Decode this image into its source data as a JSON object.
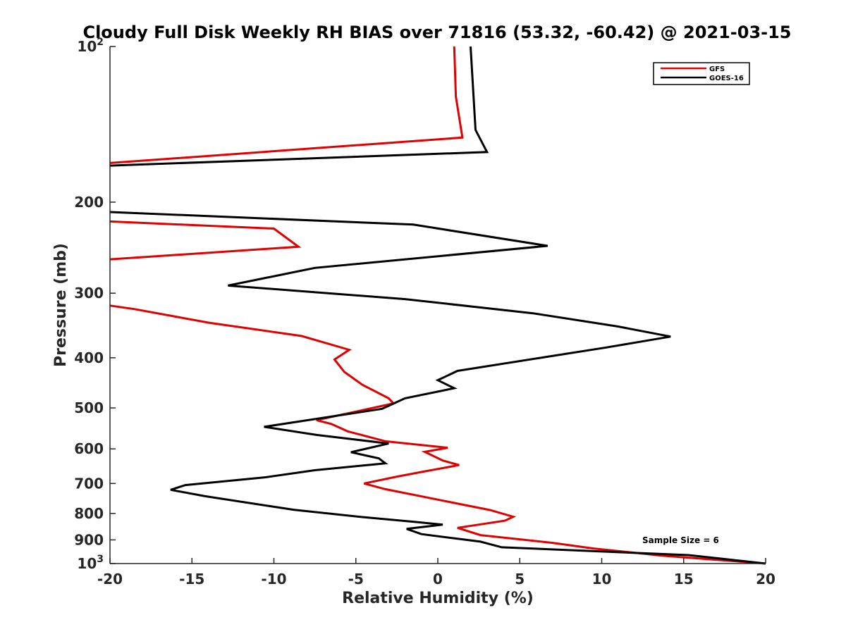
{
  "chart_data": {
    "type": "line",
    "title": "Cloudy Full Disk Weekly RH BIAS over 71816 (53.32, -60.42) @ 2021-03-15",
    "xlabel": "Relative Humidity (%)",
    "ylabel": "Pressure (mb)",
    "xlim": [
      -20,
      20
    ],
    "ylim": [
      100,
      1000
    ],
    "yscale": "log",
    "y_reversed": true,
    "x_ticks": [
      -20,
      -15,
      -10,
      -5,
      0,
      5,
      10,
      15,
      20
    ],
    "y_ticks": [
      {
        "value": 100,
        "base": "10",
        "exp": "2"
      },
      {
        "value": 200,
        "label": "200"
      },
      {
        "value": 300,
        "label": "300"
      },
      {
        "value": 400,
        "label": "400"
      },
      {
        "value": 500,
        "label": "500"
      },
      {
        "value": 600,
        "label": "600"
      },
      {
        "value": 700,
        "label": "700"
      },
      {
        "value": 800,
        "label": "800"
      },
      {
        "value": 900,
        "label": "900"
      },
      {
        "value": 1000,
        "base": "10",
        "exp": "3"
      }
    ],
    "legend_position": "top-right",
    "annotation": "Sample Size = 6",
    "series": [
      {
        "name": "GFS",
        "color": "#e00000",
        "points": [
          [
            1.0,
            100
          ],
          [
            1.1,
            125
          ],
          [
            1.5,
            150
          ],
          [
            -20,
            168
          ],
          [
            null,
            null
          ],
          [
            -20,
            218
          ],
          [
            -10.0,
            225
          ],
          [
            -8.5,
            244
          ],
          [
            -20,
            258
          ],
          [
            null,
            null
          ],
          [
            -20,
            317
          ],
          [
            -18.5,
            322
          ],
          [
            -14.0,
            342
          ],
          [
            -8.3,
            363
          ],
          [
            -5.4,
            386
          ],
          [
            -6.3,
            403
          ],
          [
            -5.7,
            426
          ],
          [
            -4.6,
            451
          ],
          [
            -3.0,
            479
          ],
          [
            -2.7,
            490
          ],
          [
            -4.7,
            506
          ],
          [
            -7.4,
            528
          ],
          [
            -6.5,
            537
          ],
          [
            -5.5,
            555
          ],
          [
            -3.2,
            580
          ],
          [
            0.6,
            597
          ],
          [
            -0.8,
            608
          ],
          [
            0.3,
            632
          ],
          [
            1.3,
            645
          ],
          [
            -1.0,
            665
          ],
          [
            -2.5,
            679
          ],
          [
            -4.5,
            700
          ],
          [
            -3.2,
            718
          ],
          [
            3.2,
            788
          ],
          [
            4.6,
            812
          ],
          [
            4.1,
            826
          ],
          [
            1.2,
            853
          ],
          [
            2.6,
            881
          ],
          [
            7.0,
            912
          ],
          [
            9.5,
            935
          ],
          [
            13.6,
            965
          ],
          [
            20.0,
            1000
          ]
        ]
      },
      {
        "name": "GOES-16",
        "color": "#000000",
        "points": [
          [
            2.0,
            100
          ],
          [
            2.3,
            145
          ],
          [
            3.0,
            160
          ],
          [
            -20,
            170
          ],
          [
            null,
            null
          ],
          [
            -20,
            209
          ],
          [
            -1.5,
            221
          ],
          [
            6.7,
            243
          ],
          [
            -7.5,
            268
          ],
          [
            -12.8,
            290
          ],
          [
            -2.0,
            308
          ],
          [
            5.8,
            328
          ],
          [
            11.0,
            348
          ],
          [
            14.2,
            364
          ],
          [
            10.3,
            382
          ],
          [
            1.2,
            424
          ],
          [
            0.0,
            442
          ],
          [
            1.0,
            458
          ],
          [
            -2.0,
            479
          ],
          [
            -3.4,
            502
          ],
          [
            -10.6,
            544
          ],
          [
            -7.4,
            564
          ],
          [
            -3.0,
            586
          ],
          [
            -5.3,
            609
          ],
          [
            -3.6,
            626
          ],
          [
            -3.2,
            640
          ],
          [
            -7.5,
            660
          ],
          [
            -10.5,
            681
          ],
          [
            -15.4,
            705
          ],
          [
            -16.3,
            720
          ],
          [
            -14.2,
            741
          ],
          [
            -8.8,
            787
          ],
          [
            -4.6,
            813
          ],
          [
            -1.5,
            830
          ],
          [
            0.3,
            841
          ],
          [
            -1.9,
            857
          ],
          [
            -1.0,
            877
          ],
          [
            2.6,
            907
          ],
          [
            3.9,
            930
          ],
          [
            15.3,
            963
          ],
          [
            20.0,
            1000
          ]
        ]
      }
    ]
  }
}
